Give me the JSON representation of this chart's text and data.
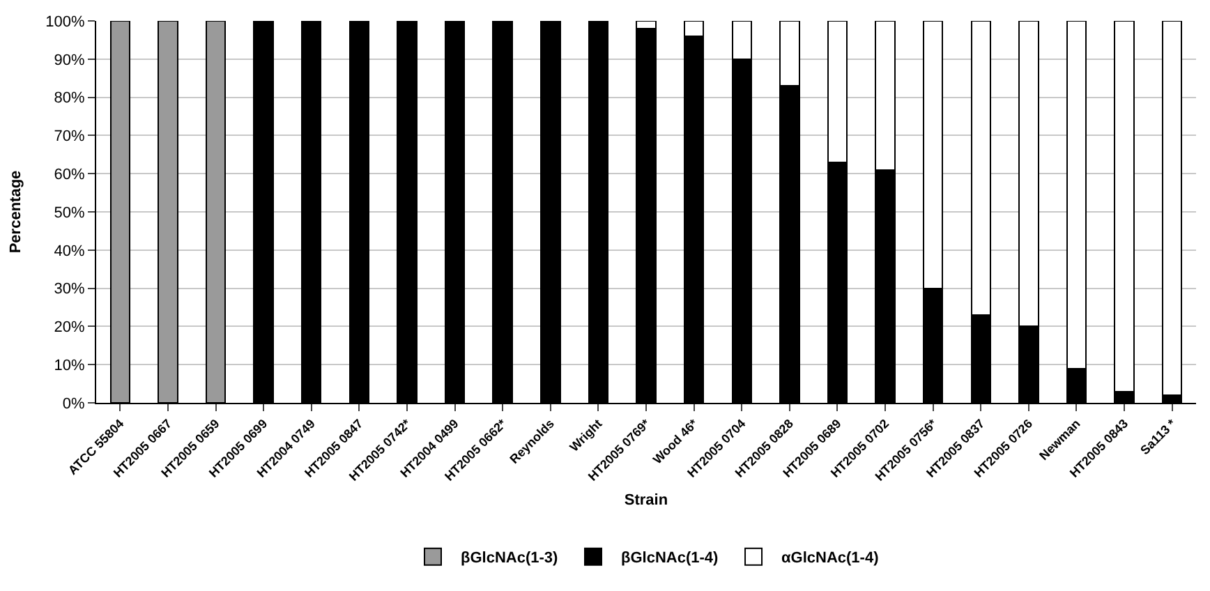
{
  "chart_data": {
    "type": "bar",
    "stacked": true,
    "xlabel": "Strain",
    "ylabel": "Percentage",
    "categories": [
      "ATCC 55804",
      "HT2005 0667",
      "HT2005 0659",
      "HT2005 0699",
      "HT2004 0749",
      "HT2005 0847",
      "HT2005 0742*",
      "HT2004 0499",
      "HT2005 0662*",
      "Reynolds",
      "Wright",
      "HT2005 0769*",
      "Wood 46*",
      "HT2005 0704",
      "HT2005 0828",
      "HT2005 0689",
      "HT2005 0702",
      "HT2005 0756*",
      "HT2005 0837",
      "HT2005 0726",
      "Newman",
      "HT2005 0843",
      "Sa113 *"
    ],
    "series": [
      {
        "name": "βGlcNAc(1-3)",
        "color": "#9a9a9a",
        "values": [
          100,
          100,
          100,
          0,
          0,
          0,
          0,
          0,
          0,
          0,
          0,
          0,
          0,
          0,
          0,
          0,
          0,
          0,
          0,
          0,
          0,
          0,
          0
        ]
      },
      {
        "name": "βGlcNAc(1-4)",
        "color": "#000000",
        "values": [
          0,
          0,
          0,
          100,
          100,
          100,
          100,
          100,
          100,
          100,
          100,
          98,
          96,
          90,
          83,
          63,
          61,
          30,
          23,
          20,
          9,
          3,
          2
        ]
      },
      {
        "name": "αGlcNAc(1-4)",
        "color": "#ffffff",
        "values": [
          0,
          0,
          0,
          0,
          0,
          0,
          0,
          0,
          0,
          0,
          0,
          2,
          4,
          10,
          17,
          37,
          39,
          70,
          77,
          80,
          91,
          97,
          98
        ]
      }
    ],
    "ylim": [
      0,
      100
    ],
    "yticks": [
      {
        "value": 0,
        "label": "0%"
      },
      {
        "value": 10,
        "label": "10%"
      },
      {
        "value": 20,
        "label": "20%"
      },
      {
        "value": 30,
        "label": "30%"
      },
      {
        "value": 40,
        "label": "40%"
      },
      {
        "value": 50,
        "label": "50%"
      },
      {
        "value": 60,
        "label": "60%"
      },
      {
        "value": 70,
        "label": "70%"
      },
      {
        "value": 80,
        "label": "80%"
      },
      {
        "value": 90,
        "label": "90%"
      },
      {
        "value": 100,
        "label": "100%"
      }
    ],
    "grid": "y",
    "legend": "bottom"
  }
}
